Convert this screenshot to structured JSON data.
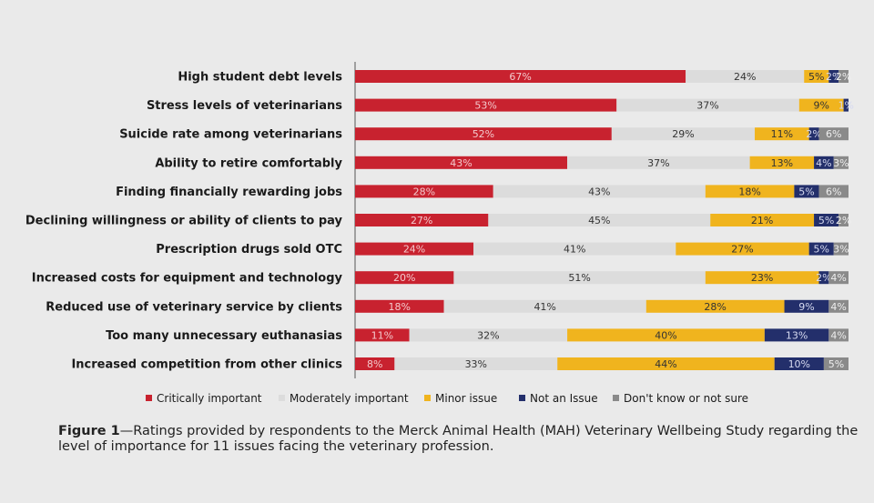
{
  "chart_data": {
    "type": "bar",
    "orientation": "horizontal",
    "stacked": true,
    "xlim": [
      0,
      100
    ],
    "grid": false,
    "legend_position": "bottom",
    "categories": [
      "High student debt levels",
      "Stress levels of veterinarians",
      "Suicide rate among veterinarians",
      "Ability to retire comfortably",
      "Finding financially rewarding jobs",
      "Declining willingness or ability of clients to pay",
      "Prescription drugs sold OTC",
      "Increased costs for equipment and technology",
      "Reduced use of veterinary service by clients",
      "Too many unnecessary euthanasias",
      "Increased competition from other clinics"
    ],
    "series": [
      {
        "name": "Critically important",
        "color": "#c8222f",
        "label_color": "#f3c9cc",
        "values": [
          67,
          53,
          52,
          43,
          28,
          27,
          24,
          20,
          18,
          11,
          8
        ]
      },
      {
        "name": "Moderately important",
        "color": "#dcdcdc",
        "label_color": "#333333",
        "values": [
          24,
          37,
          29,
          37,
          43,
          45,
          41,
          51,
          41,
          32,
          33
        ]
      },
      {
        "name": "Minor issue",
        "color": "#f0b41e",
        "label_color": "#333333",
        "values": [
          5,
          9,
          11,
          13,
          18,
          21,
          27,
          23,
          28,
          40,
          44
        ]
      },
      {
        "name": "Not an Issue",
        "color": "#232f6b",
        "label_color": "#d6daf0",
        "values": [
          2,
          1,
          2,
          4,
          5,
          5,
          5,
          2,
          9,
          13,
          10
        ]
      },
      {
        "name": "Don't know or not sure",
        "color": "#8a8a8a",
        "label_color": "#eeeeee",
        "values": [
          2,
          0,
          6,
          3,
          6,
          2,
          3,
          4,
          4,
          4,
          5
        ]
      }
    ],
    "value_suffix": "%"
  },
  "caption": {
    "figure_label": "Figure 1",
    "text": "—Ratings provided by respondents to the Merck Animal Health (MAH) Veterinary Wellbeing Study regarding the level of importance for 11 issues facing the veterinary profession."
  }
}
